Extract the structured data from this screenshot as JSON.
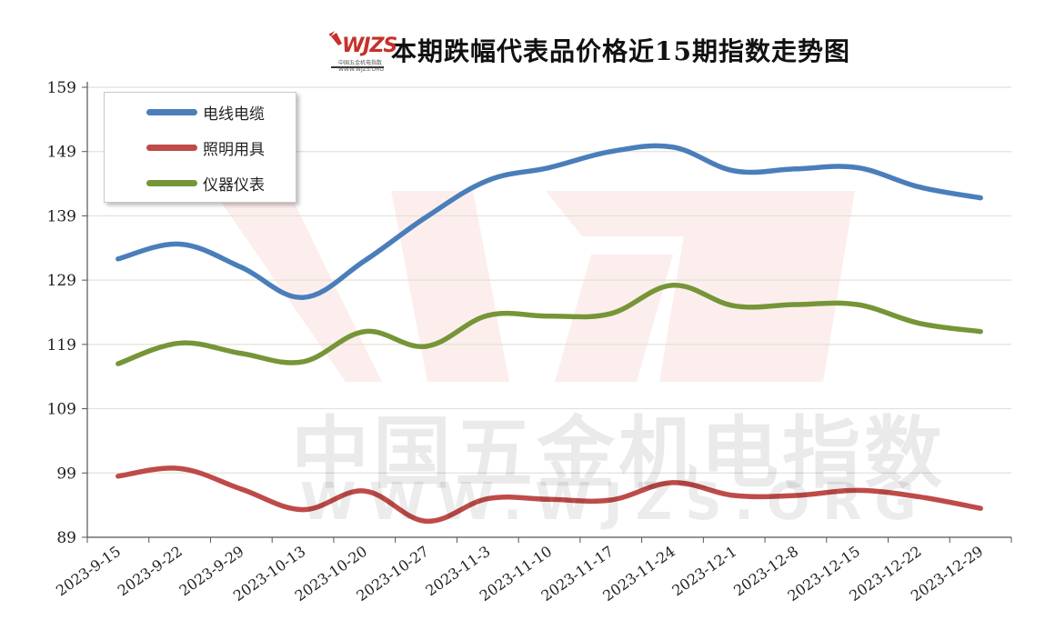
{
  "title": "本期跌幅代表品价格近15期指数走势图",
  "logo": {
    "text": "WJZS",
    "subtext": "中国五金机电指数 WWW.WJZS.ORG"
  },
  "watermark": {
    "cn": "中国五金机电指数",
    "url": "WWW.WJZS.ORG",
    "mark": "WJZS"
  },
  "colors": {
    "grid": "#e2e2d6",
    "axis": "#555555",
    "watermark": "#e45a4e"
  },
  "chart_data": {
    "type": "line",
    "title": "本期跌幅代表品价格近15期指数走势图",
    "categories": [
      "2023-9-15",
      "2023-9-22",
      "2023-9-29",
      "2023-10-13",
      "2023-10-20",
      "2023-10-27",
      "2023-11-3",
      "2023-11-10",
      "2023-11-17",
      "2023-11-24",
      "2023-12-1",
      "2023-12-8",
      "2023-12-15",
      "2023-12-22",
      "2023-12-29"
    ],
    "ylim": [
      89,
      159
    ],
    "yticks": [
      89,
      99,
      109,
      119,
      129,
      139,
      149,
      159
    ],
    "grid": true,
    "legend_position": "top-left",
    "series": [
      {
        "name": "电线电缆",
        "color": "#4a7ebb",
        "values": [
          132.3,
          134.6,
          131.0,
          126.3,
          132.0,
          138.8,
          144.5,
          146.5,
          149.0,
          149.7,
          146.0,
          146.3,
          146.5,
          143.5,
          141.8
        ]
      },
      {
        "name": "照明用具",
        "color": "#be4b48",
        "values": [
          98.5,
          99.7,
          96.5,
          93.3,
          96.2,
          91.5,
          95.0,
          94.9,
          94.8,
          97.5,
          95.5,
          95.5,
          96.3,
          95.3,
          93.5
        ]
      },
      {
        "name": "仪器仪表",
        "color": "#769537",
        "values": [
          116.0,
          119.2,
          117.6,
          116.3,
          121.0,
          118.7,
          123.5,
          123.4,
          123.8,
          128.2,
          125.0,
          125.2,
          125.2,
          122.3,
          121.0
        ]
      }
    ]
  }
}
